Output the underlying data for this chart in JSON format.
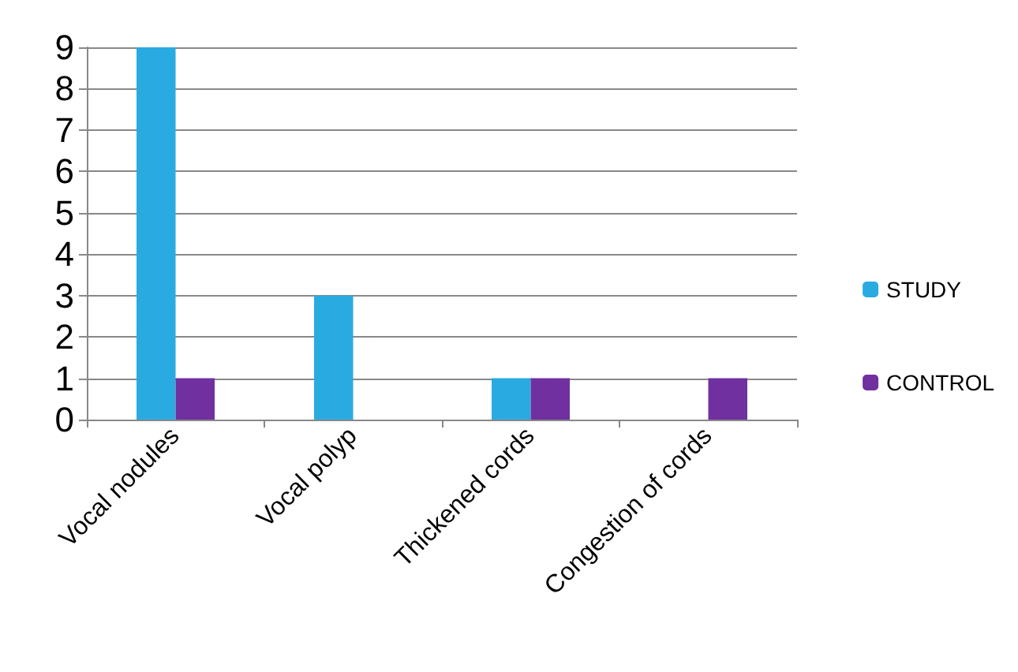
{
  "chart_data": {
    "type": "bar",
    "categories": [
      "Vocal nodules",
      "Vocal polyp",
      "Thickened cords",
      "Congestion of cords"
    ],
    "series": [
      {
        "name": "STUDY",
        "color": "#29abe2",
        "values": [
          9,
          3,
          1,
          0
        ]
      },
      {
        "name": "CONTROL",
        "color": "#7030a0",
        "values": [
          1,
          0,
          1,
          1
        ]
      }
    ],
    "ylim": [
      0,
      9
    ],
    "yticks": [
      0,
      1,
      2,
      3,
      4,
      5,
      6,
      7,
      8,
      9
    ],
    "grid": "y",
    "legend": "right"
  }
}
